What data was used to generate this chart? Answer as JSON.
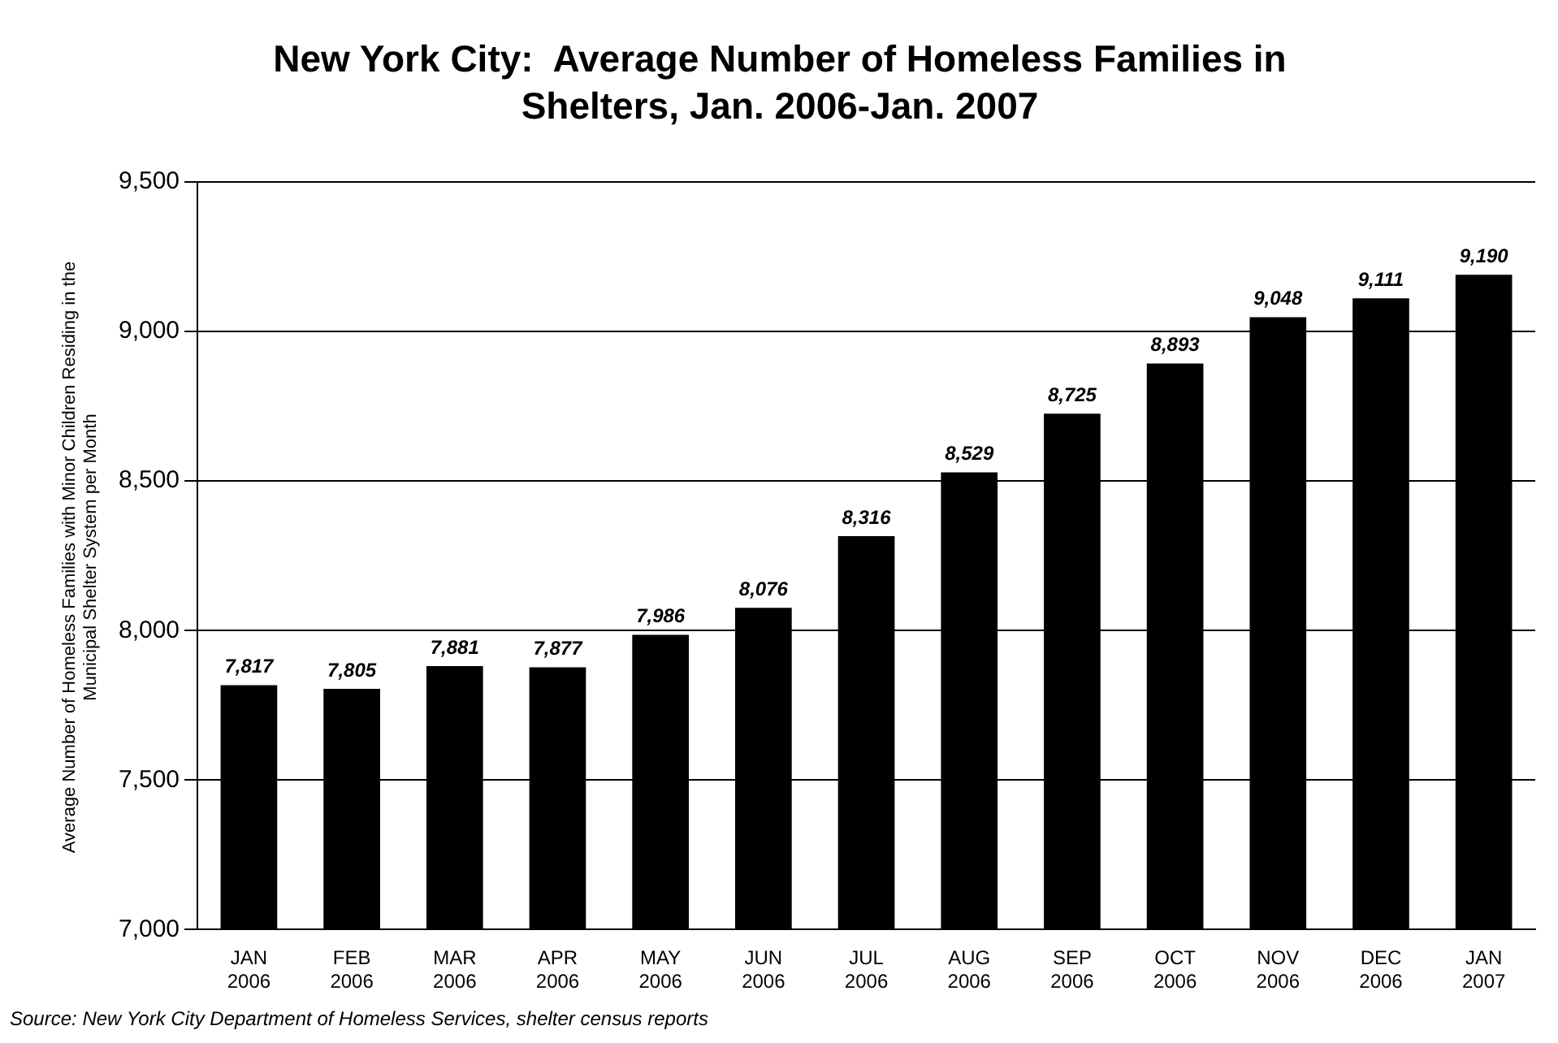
{
  "chart_data": {
    "type": "bar",
    "title": "New York City:  Average Number of Homeless Families in Shelters, Jan. 2006-Jan. 2007",
    "ylabel": "Average Number of Homeless Families with Minor Children Residing in the Municipal Shelter System per Month",
    "categories": [
      "JAN 2006",
      "FEB 2006",
      "MAR 2006",
      "APR 2006",
      "MAY 2006",
      "JUN 2006",
      "JUL 2006",
      "AUG 2006",
      "SEP 2006",
      "OCT 2006",
      "NOV 2006",
      "DEC 2006",
      "JAN 2007"
    ],
    "values": [
      7817,
      7805,
      7881,
      7877,
      7986,
      8076,
      8316,
      8529,
      8725,
      8893,
      9048,
      9111,
      9190
    ],
    "color": "#000000",
    "ylim": [
      7000,
      9500
    ],
    "yticks": [
      {
        "value": 7000,
        "label": "7,000"
      },
      {
        "value": 7500,
        "label": "7,500"
      },
      {
        "value": 8000,
        "label": "8,000"
      },
      {
        "value": 8500,
        "label": "8,500"
      },
      {
        "value": 9000,
        "label": "9,000"
      },
      {
        "value": 9500,
        "label": "9,500"
      }
    ],
    "value_labels": [
      "7,817",
      "7,805",
      "7,881",
      "7,877",
      "7,986",
      "8,076",
      "8,316",
      "8,529",
      "8,725",
      "8,893",
      "9,048",
      "9,111",
      "9,190"
    ],
    "grid": "y",
    "legend": false,
    "annotations": [
      "Source:  New York City Department of Homeless Services, shelter census reports"
    ]
  }
}
